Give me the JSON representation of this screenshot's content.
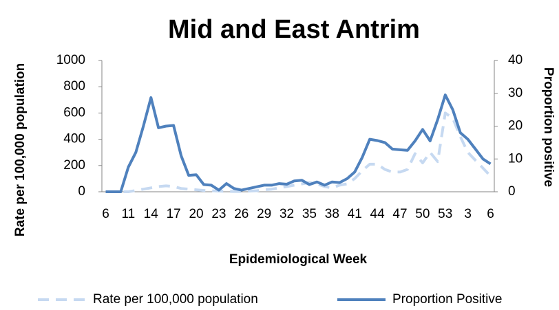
{
  "chart_data": {
    "type": "line",
    "title": "Mid and East Antrim",
    "xlabel": "Epidemiological Week",
    "ylabel": "Rate per 100,000 population",
    "y2label": "Proportion positive",
    "categories": [
      6,
      null,
      null,
      11,
      null,
      null,
      14,
      null,
      null,
      17,
      null,
      null,
      20,
      null,
      null,
      23,
      null,
      null,
      26,
      null,
      null,
      29,
      null,
      null,
      32,
      null,
      null,
      35,
      null,
      null,
      38,
      null,
      null,
      41,
      null,
      null,
      44,
      null,
      null,
      47,
      null,
      null,
      50,
      null,
      null,
      53,
      null,
      null,
      3,
      null,
      null,
      6
    ],
    "series": [
      {
        "name": "Rate per 100,000 population",
        "color": "#c6d9f1",
        "dashed": true,
        "values": [
          0,
          0,
          0,
          0,
          10,
          20,
          30,
          40,
          45,
          40,
          25,
          20,
          15,
          10,
          8,
          5,
          3,
          2,
          2,
          5,
          8,
          15,
          20,
          30,
          40,
          50,
          60,
          70,
          60,
          40,
          30,
          50,
          60,
          100,
          160,
          210,
          210,
          170,
          150,
          150,
          170,
          290,
          220,
          300,
          230,
          600,
          560,
          420,
          300,
          240,
          180,
          120
        ]
      },
      {
        "name": "Proportion Positive",
        "color": "#4f81bd",
        "axis": "y2",
        "values": [
          0,
          0,
          0,
          7.5,
          12,
          20,
          28.7,
          19.5,
          20,
          20.2,
          11,
          5,
          5.2,
          2.2,
          2,
          0.5,
          2.5,
          1,
          0.5,
          1,
          1.5,
          2,
          2,
          2.5,
          2.3,
          3.3,
          3.5,
          2.2,
          3,
          2,
          3,
          2.8,
          4,
          6,
          10.5,
          16,
          15.6,
          15,
          13,
          12.8,
          12.6,
          15.5,
          19,
          15.5,
          22,
          29.5,
          25,
          18,
          16,
          13,
          10,
          8.5
        ]
      }
    ],
    "ylim": [
      0,
      1000
    ],
    "yticks": [
      0,
      200,
      400,
      600,
      800,
      1000
    ],
    "y2lim": [
      0,
      40
    ],
    "y2ticks": [
      0,
      10,
      20,
      30,
      40
    ],
    "grid": false
  }
}
